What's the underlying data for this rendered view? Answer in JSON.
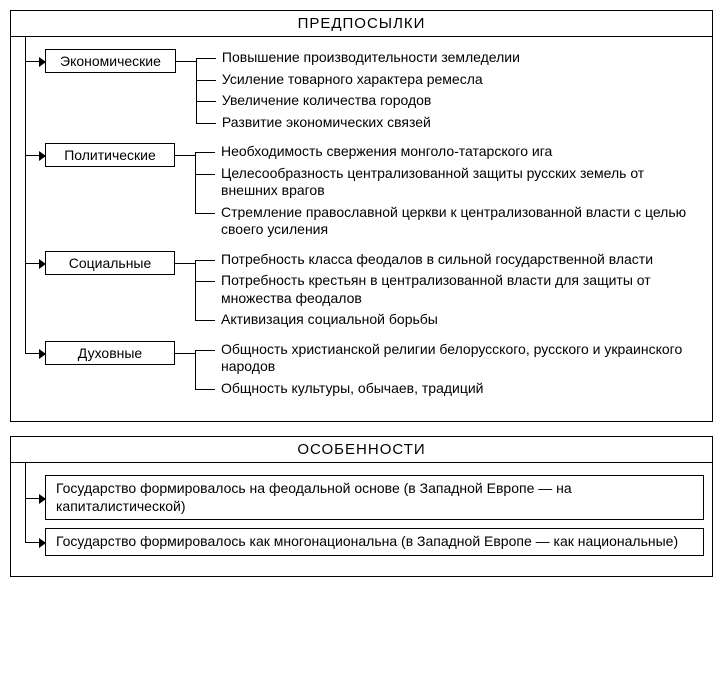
{
  "section1": {
    "title": "ПРЕДПОСЫЛКИ",
    "categories": [
      {
        "label": "Экономические",
        "items": [
          "Повышение производительности земледелии",
          "Усиление товарного характера ремесла",
          "Увеличение количества городов",
          "Развитие экономических связей"
        ]
      },
      {
        "label": "Политические",
        "items": [
          "Необходимость свержения монголо-татарского ига",
          "Целесообразность централизованной защиты русских земель от внешних врагов",
          "Стремление православной церкви к централизованной власти с целью своего усиления"
        ]
      },
      {
        "label": "Социальные",
        "items": [
          "Потребность класса феодалов в сильной государственной власти",
          "Потребность крестьян в централизованной власти для защиты от множества феодалов",
          "Активизация социальной борьбы"
        ]
      },
      {
        "label": "Духовные",
        "items": [
          "Общность христианской религии белорусского, русского и украинского народов",
          "Общность культуры, обычаев, традиций"
        ]
      }
    ]
  },
  "section2": {
    "title": "ОСОБЕННОСТИ",
    "features": [
      "Государство формировалось на феодальной основе (в Западной Европе — на капиталистической)",
      "Государство формировалось как многонациональна (в Западной Европе — как национальные)"
    ]
  },
  "style": {
    "border_color": "#000000",
    "background": "#ffffff",
    "font_family": "Arial, sans-serif",
    "title_fontsize": 15,
    "body_fontsize": 14,
    "cat_box_width": 130
  }
}
